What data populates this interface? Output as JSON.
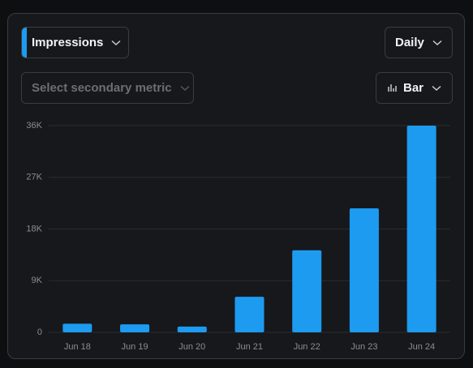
{
  "controls": {
    "metric": "Impressions",
    "period": "Daily",
    "secondary": "Select secondary metric",
    "chart_style": "Bar"
  },
  "chart_data": {
    "type": "bar",
    "categories": [
      "Jun 18",
      "Jun 19",
      "Jun 20",
      "Jun 21",
      "Jun 22",
      "Jun 23",
      "Jun 24"
    ],
    "values": [
      1500,
      1400,
      1000,
      6200,
      14300,
      21600,
      36000
    ],
    "color": "#1d9bf0",
    "ylim": [
      0,
      36000
    ],
    "yticks": [
      0,
      {
        "value": 9000,
        "label": "9K"
      },
      {
        "value": 18000,
        "label": "18K"
      },
      {
        "value": 27000,
        "label": "27K"
      },
      {
        "value": 36000,
        "label": "36K"
      }
    ],
    "grid": true
  }
}
